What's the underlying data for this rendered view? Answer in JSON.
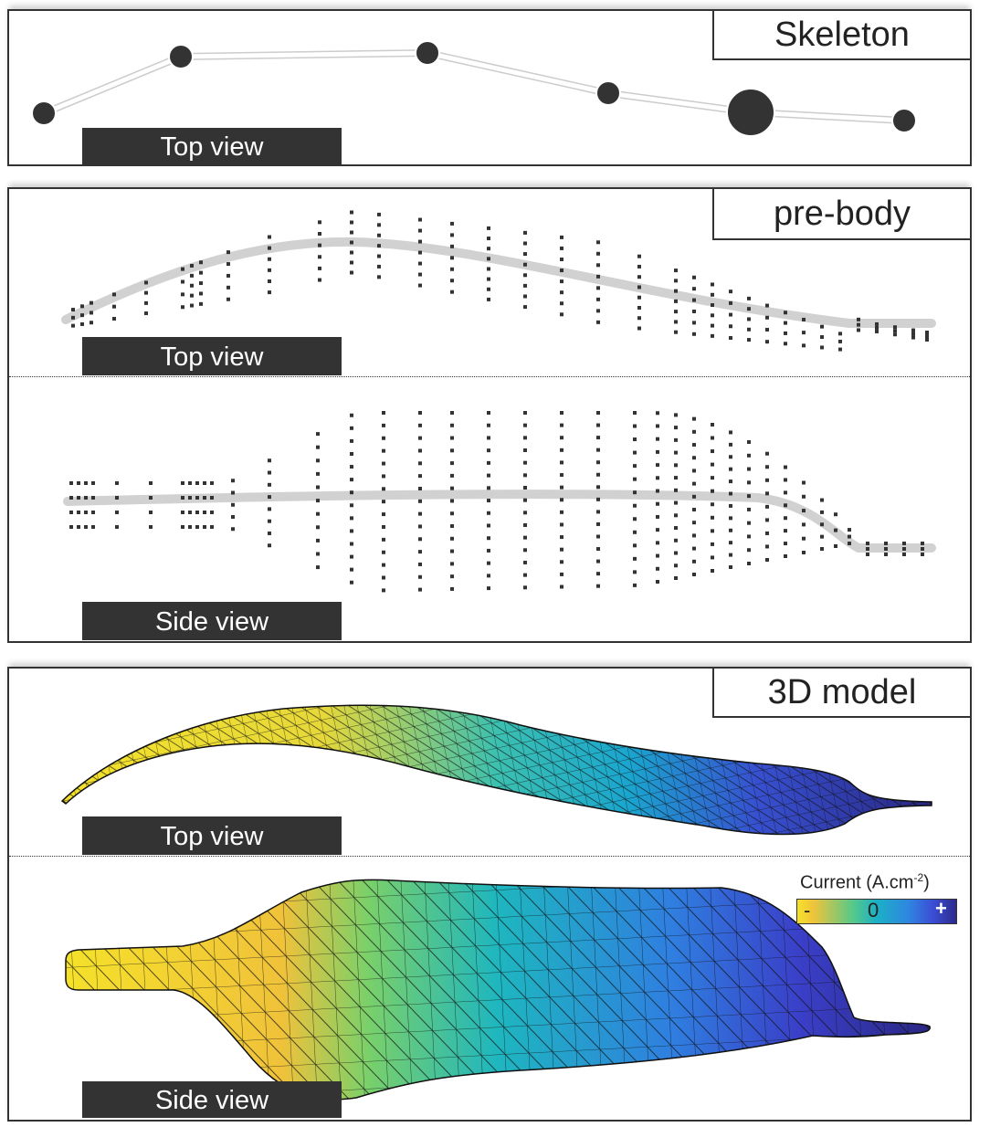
{
  "panels": {
    "skeleton": {
      "title": "Skeleton",
      "views": [
        "Top view"
      ]
    },
    "prebody": {
      "title": "pre-body",
      "views": [
        "Top view",
        "Side view"
      ]
    },
    "model": {
      "title": "3D model",
      "views": [
        "Top view",
        "Side view"
      ]
    }
  },
  "legend": {
    "title": "Current (A.cm",
    "exponent": "-2",
    "close": ")",
    "minus": "-",
    "zero": "0",
    "plus": "+"
  },
  "colors": {
    "frame": "#333333",
    "skeleton_line": "#ffffff",
    "node": "#333333",
    "gradient": [
      "#f5e12a",
      "#56c98a",
      "#1cb0c6",
      "#2f86e0",
      "#2c2a8c"
    ]
  }
}
